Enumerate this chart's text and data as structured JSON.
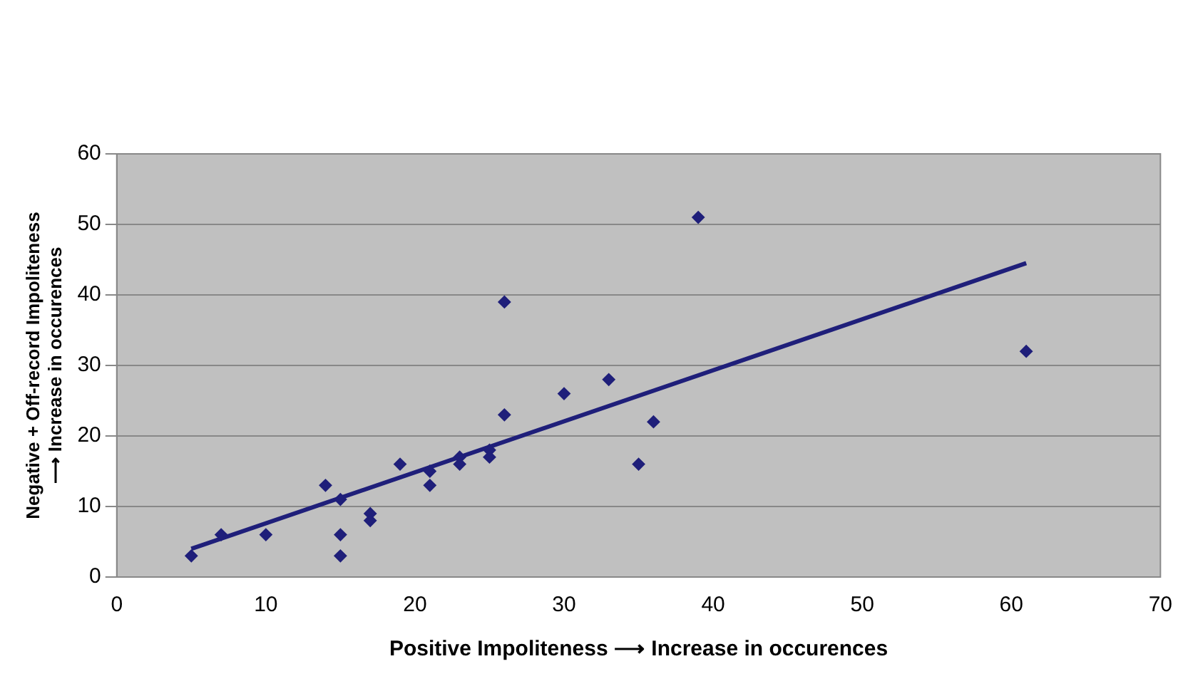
{
  "chart_data": {
    "type": "scatter",
    "xlabel": "Positive Impoliteness ⟶ Increase in occurences",
    "ylabel": "Negative + Off-record Impoliteness\n⟶ Increase in occurences",
    "xlim": [
      0,
      70
    ],
    "xticks": [
      0,
      10,
      20,
      30,
      40,
      50,
      60,
      70
    ],
    "ylim": [
      0,
      60
    ],
    "yticks": [
      0,
      10,
      20,
      30,
      40,
      50,
      60
    ],
    "grid": "y",
    "marker": "diamond",
    "series": [
      {
        "color": "#1f1f7a",
        "x": [
          5,
          7,
          10,
          14,
          15,
          15,
          15,
          17,
          17,
          19,
          21,
          21,
          23,
          23,
          25,
          25,
          26,
          26,
          30,
          33,
          35,
          36,
          39,
          61
        ],
        "values": [
          3,
          6,
          6,
          13,
          11,
          6,
          3,
          9,
          8,
          16,
          15,
          13,
          17,
          16,
          18,
          17,
          39,
          23,
          26,
          28,
          16,
          22,
          51,
          32
        ]
      },
      {
        "type": "line",
        "marker": "none",
        "color": "#1f1f7a",
        "x": [
          5,
          61
        ],
        "values": [
          4,
          44.5
        ]
      }
    ]
  }
}
